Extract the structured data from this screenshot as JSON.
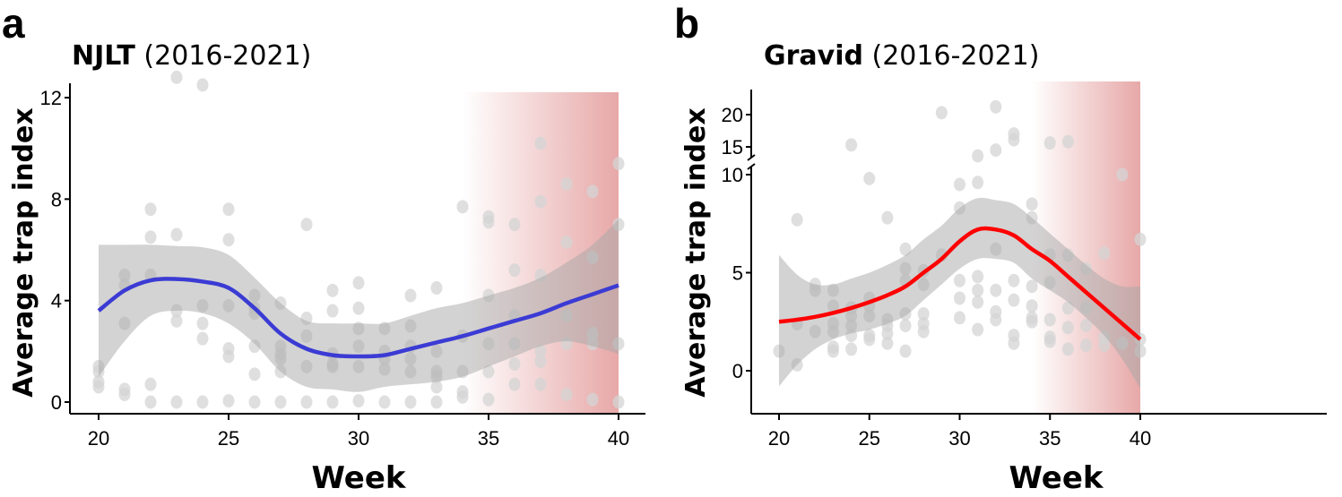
{
  "chart_data": [
    {
      "type": "scatter+line",
      "panel_label": "a",
      "title_bold": "NJLT",
      "title_rest": " (2016-2021)",
      "xlabel": "Week",
      "ylabel": "Average trap index",
      "xlim": [
        20,
        40
      ],
      "xticks": [
        20,
        25,
        30,
        35,
        40
      ],
      "ylim": [
        0,
        12
      ],
      "yticks": [
        0,
        4,
        8,
        12
      ],
      "line_color": "#3b3bd4",
      "highlight_color": "#e6a3a3",
      "highlight_range": [
        34,
        40
      ],
      "points": {
        "20": [
          1.4,
          1.2,
          0.8,
          0.6
        ],
        "21": [
          5.0,
          4.6,
          3.1,
          0.5,
          0.3
        ],
        "22": [
          7.6,
          6.5,
          5.0,
          0.7,
          0
        ],
        "23": [
          12.8,
          6.6,
          3.6,
          3.2,
          0
        ],
        "24": [
          12.5,
          3.8,
          3.1,
          2.5,
          0
        ],
        "25": [
          7.6,
          6.4,
          3.8,
          2.1,
          1.8,
          0.05
        ],
        "26": [
          4.2,
          3.7,
          3.5,
          2.2,
          1.1,
          0
        ],
        "27": [
          3.9,
          2.2,
          1.9,
          1.7,
          1.2,
          0
        ],
        "28": [
          7.0,
          3.3,
          2.6,
          1.4,
          0
        ],
        "29": [
          4.4,
          3.6,
          1.9,
          1.5,
          1.4,
          0
        ],
        "30": [
          4.7,
          3.7,
          2.9,
          2.2,
          1.4,
          0.05
        ],
        "31": [
          2.9,
          2.0,
          1.7,
          1.3,
          0
        ],
        "32": [
          4.2,
          3.0,
          2.2,
          1.7,
          1.2,
          0
        ],
        "33": [
          4.5,
          2.0,
          1.2,
          1.0,
          0.6,
          0
        ],
        "34": [
          7.7,
          2.6,
          1.2,
          0.4,
          0.2
        ],
        "35": [
          7.3,
          7.1,
          4.2,
          2.3,
          1.2,
          0.1
        ],
        "36": [
          7.0,
          5.2,
          3.4,
          2.3,
          1.5,
          0.7
        ],
        "37": [
          10.2,
          7.9,
          5.0,
          2.0,
          1.6,
          0.7
        ],
        "38": [
          8.6,
          6.3,
          3.4,
          2.3,
          0.3
        ],
        "39": [
          8.3,
          5.7,
          2.7,
          2.3,
          0.1
        ],
        "40": [
          9.4,
          7.0,
          2.3,
          0.0
        ]
      },
      "smooth_x": [
        20,
        21,
        22,
        23,
        24,
        25,
        26,
        27,
        28,
        29,
        30,
        31,
        32,
        33,
        34,
        35,
        36,
        37,
        38,
        39,
        40
      ],
      "smooth_y": [
        3.6,
        4.4,
        4.8,
        4.85,
        4.75,
        4.5,
        3.7,
        2.7,
        2.1,
        1.85,
        1.8,
        1.85,
        2.1,
        2.35,
        2.6,
        2.9,
        3.2,
        3.5,
        3.9,
        4.25,
        4.6
      ],
      "ci_upper": [
        6.2,
        6.2,
        6.2,
        6.15,
        6.1,
        5.8,
        4.9,
        3.9,
        3.2,
        3.1,
        3.1,
        3.1,
        3.4,
        3.7,
        3.9,
        4.2,
        4.5,
        4.9,
        5.5,
        6.2,
        7.2
      ],
      "ci_lower": [
        1.0,
        2.4,
        3.4,
        3.6,
        3.5,
        3.1,
        2.3,
        1.2,
        0.6,
        0.5,
        0.4,
        0.6,
        0.7,
        0.8,
        1.0,
        1.4,
        1.8,
        2.2,
        2.4,
        2.2,
        1.9
      ]
    },
    {
      "type": "scatter+line",
      "panel_label": "b",
      "title_bold": "Gravid",
      "title_rest": " (2016-2021)",
      "xlabel": "Week",
      "ylabel": "Average trap index",
      "xlim": [
        20,
        40
      ],
      "xticks": [
        20,
        25,
        30,
        35,
        40
      ],
      "ylim": [
        -2,
        22
      ],
      "y_axis_break": [
        10.5,
        13.5
      ],
      "yticks": [
        0,
        5,
        10,
        15,
        20
      ],
      "line_color": "#ff0000",
      "highlight_color": "#e6a3a3",
      "highlight_range": [
        34,
        40
      ],
      "points": {
        "20": [
          1.0
        ],
        "21": [
          7.7,
          2.4,
          0.3
        ],
        "22": [
          4.4,
          4.1,
          2.0
        ],
        "23": [
          4.1,
          3.3,
          2.4,
          2.0,
          1.2,
          1.0
        ],
        "24": [
          15.3,
          3.2,
          2.8,
          2.3,
          1.8,
          1.1
        ],
        "25": [
          9.8,
          3.7,
          3.3,
          2.8,
          1.8,
          1.6
        ],
        "26": [
          7.8,
          2.6,
          2.3,
          1.9,
          1.4
        ],
        "27": [
          6.2,
          5.2,
          4.6,
          2.9,
          2.3,
          1.0
        ],
        "28": [
          5.1,
          4.4,
          2.9,
          2.4,
          2.0
        ],
        "29": [
          20.3,
          5.9
        ],
        "30": [
          9.5,
          8.3,
          4.6,
          3.7,
          2.7
        ],
        "31": [
          13.6,
          9.6,
          4.8,
          4.1,
          3.5,
          2.1
        ],
        "32": [
          21.2,
          14.5,
          6.2,
          4.1,
          3.0,
          2.6
        ],
        "33": [
          17.0,
          16.1,
          4.6,
          3.6,
          1.8,
          1.4
        ],
        "34": [
          8.5,
          7.8,
          4.3,
          3.3,
          2.7,
          2.5
        ],
        "35": [
          15.6,
          5.9,
          4.5,
          2.6,
          1.7,
          1.5
        ],
        "36": [
          15.8,
          5.9,
          3.2,
          2.2,
          1.1
        ],
        "37": [
          5.2,
          3.2,
          2.3,
          1.3
        ],
        "38": [
          6.0,
          1.7,
          1.3
        ],
        "39": [
          10.0,
          1.4
        ],
        "40": [
          6.7,
          1.6,
          1.0
        ]
      },
      "smooth_x": [
        20,
        21,
        22,
        23,
        24,
        25,
        26,
        27,
        28,
        29,
        30,
        31,
        32,
        33,
        34,
        35,
        36,
        37,
        38,
        39,
        40
      ],
      "smooth_y": [
        2.5,
        2.6,
        2.75,
        2.95,
        3.2,
        3.5,
        3.85,
        4.3,
        5.0,
        5.7,
        6.6,
        7.2,
        7.2,
        6.9,
        6.2,
        5.6,
        4.8,
        4.0,
        3.2,
        2.4,
        1.6
      ],
      "ci_upper": [
        5.9,
        4.9,
        4.4,
        4.4,
        4.7,
        5.0,
        5.4,
        5.9,
        6.7,
        7.4,
        8.3,
        8.8,
        8.7,
        8.5,
        7.8,
        7.0,
        6.2,
        5.4,
        4.7,
        4.3,
        4.3
      ],
      "ci_lower": [
        -0.8,
        0.3,
        1.1,
        1.6,
        1.9,
        2.1,
        2.4,
        2.8,
        3.6,
        4.4,
        5.2,
        5.7,
        5.7,
        5.5,
        4.7,
        4.1,
        3.5,
        2.7,
        1.8,
        0.6,
        -0.9
      ]
    }
  ]
}
